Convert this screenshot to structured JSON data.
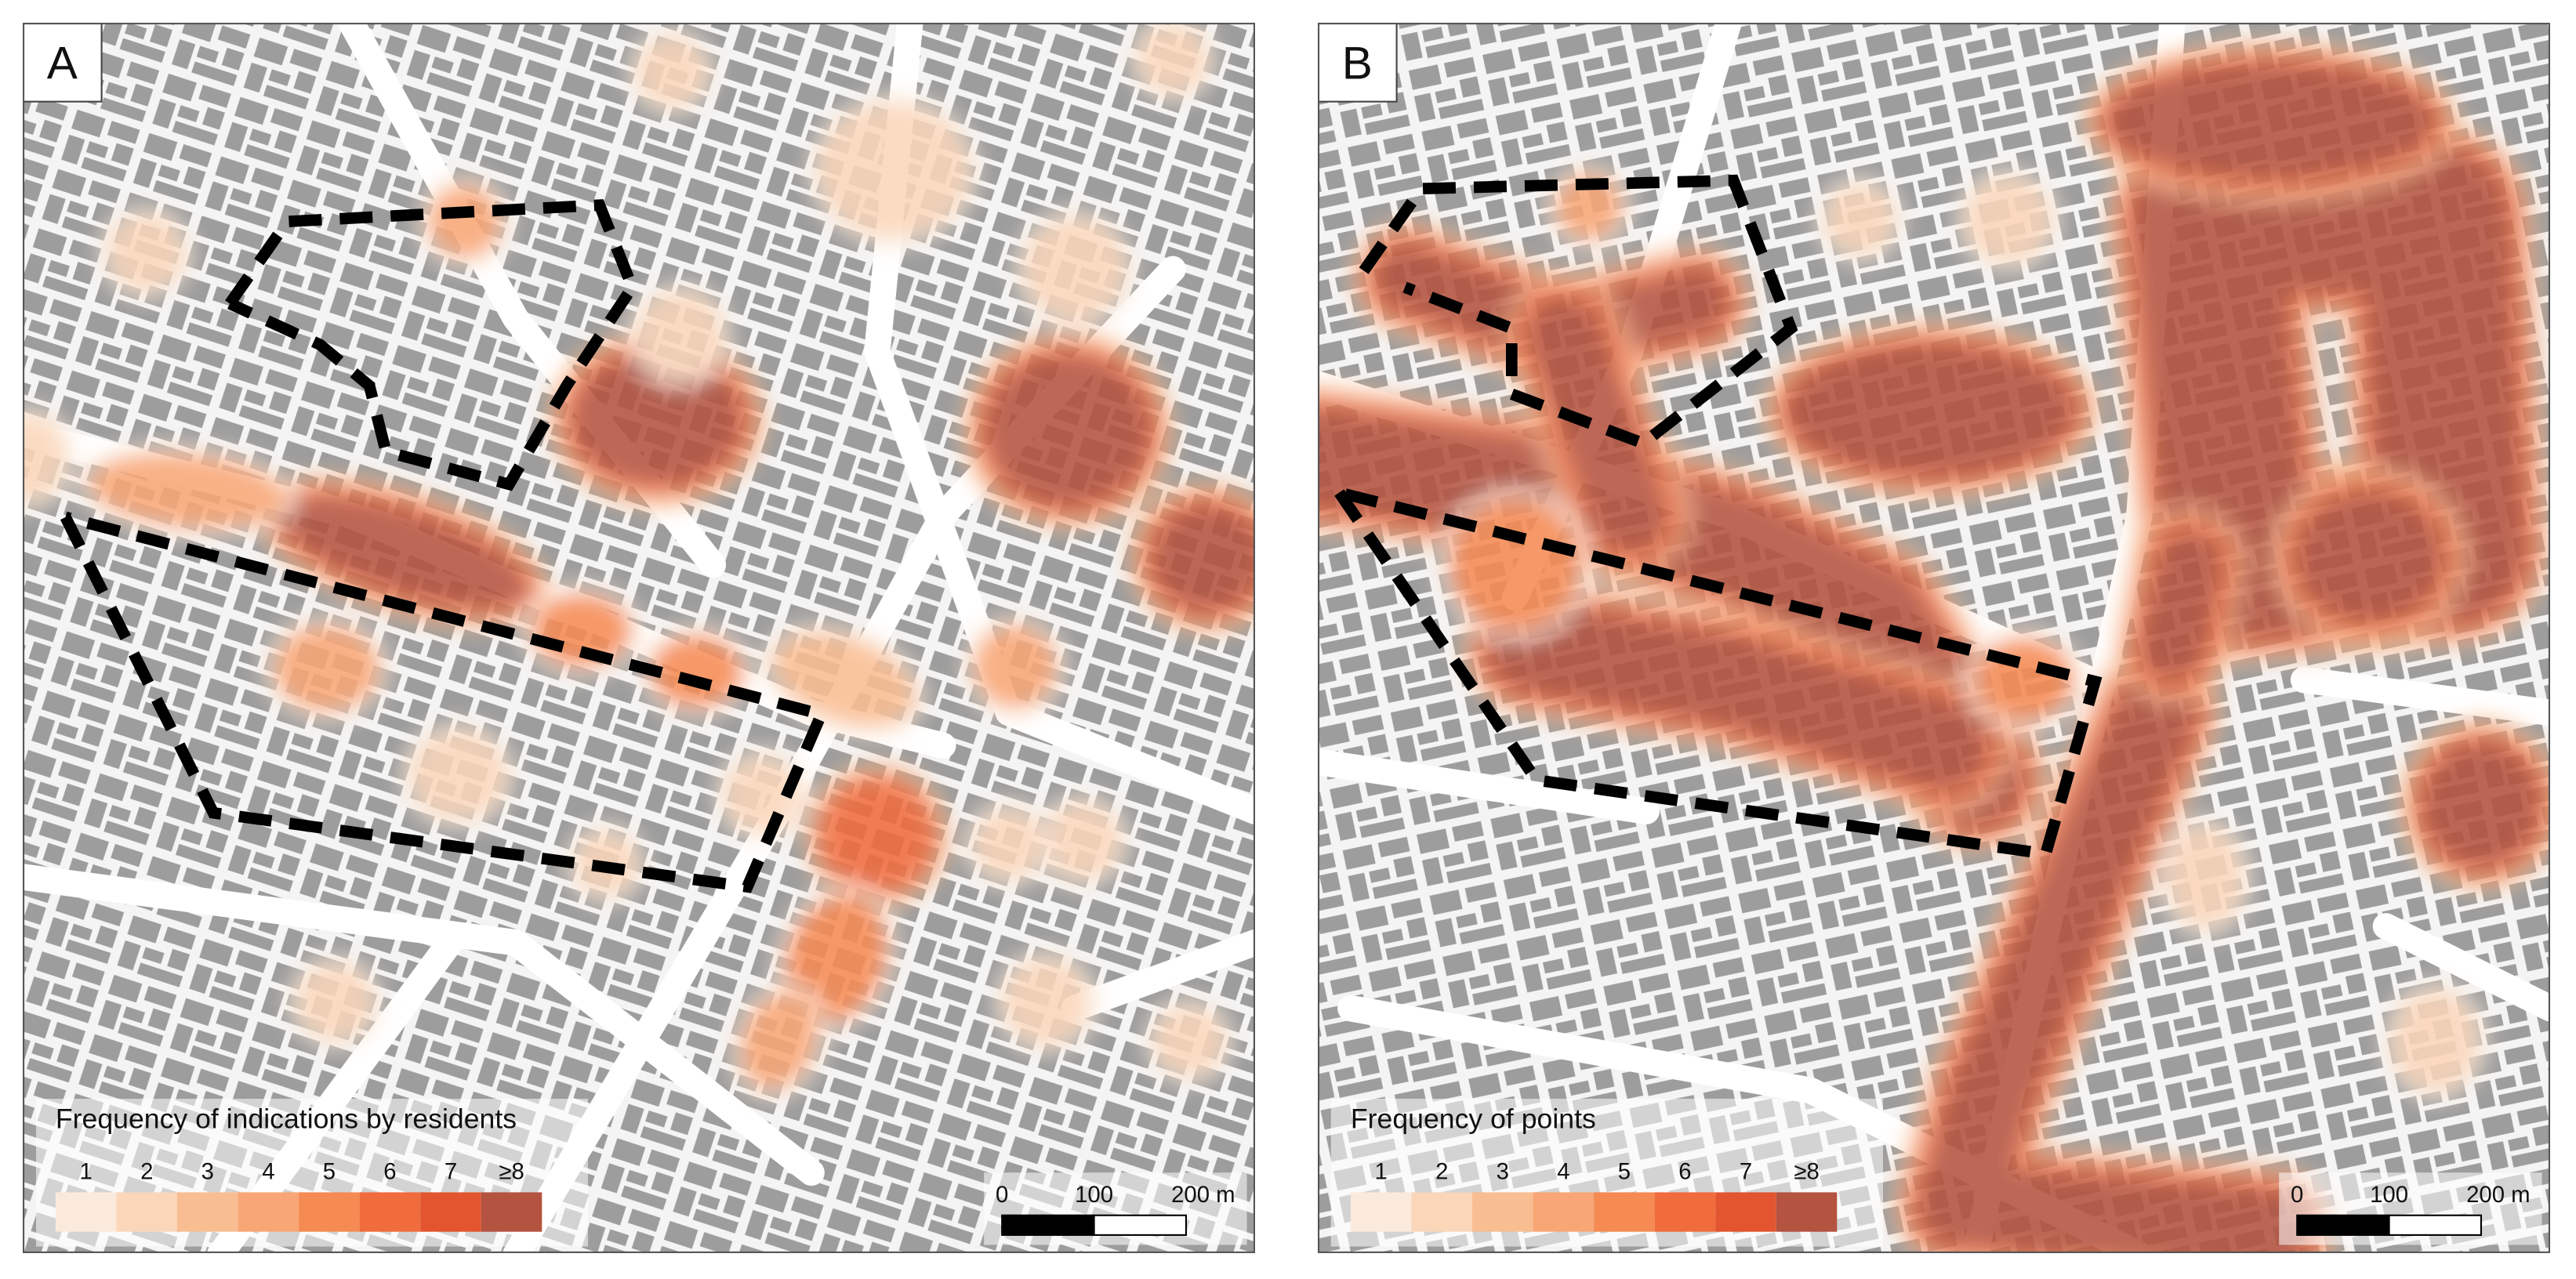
{
  "panels": [
    {
      "label": "A",
      "legend": {
        "title": "Frequency of indications by residents",
        "classes": [
          {
            "label": "1",
            "color": "#fbeadc"
          },
          {
            "label": "2",
            "color": "#fbd6b9"
          },
          {
            "label": "3",
            "color": "#f9bd92"
          },
          {
            "label": "4",
            "color": "#f8a675"
          },
          {
            "label": "5",
            "color": "#f58a52"
          },
          {
            "label": "6",
            "color": "#f06c3c"
          },
          {
            "label": "7",
            "color": "#e2552f"
          },
          {
            "label": "≥8",
            "color": "#b45340"
          }
        ]
      },
      "scale": {
        "ticks": [
          "0",
          "100",
          "200 m"
        ]
      }
    },
    {
      "label": "B",
      "legend": {
        "title": "Frequency of points",
        "classes": [
          {
            "label": "1",
            "color": "#fbeadc"
          },
          {
            "label": "2",
            "color": "#fbd6b9"
          },
          {
            "label": "3",
            "color": "#f9bd92"
          },
          {
            "label": "4",
            "color": "#f8a675"
          },
          {
            "label": "5",
            "color": "#f58a52"
          },
          {
            "label": "6",
            "color": "#f06c3c"
          },
          {
            "label": "7",
            "color": "#e2552f"
          },
          {
            "label": "≥8",
            "color": "#b45340"
          }
        ]
      },
      "scale": {
        "ticks": [
          "0",
          "100",
          "200 m"
        ]
      }
    }
  ]
}
